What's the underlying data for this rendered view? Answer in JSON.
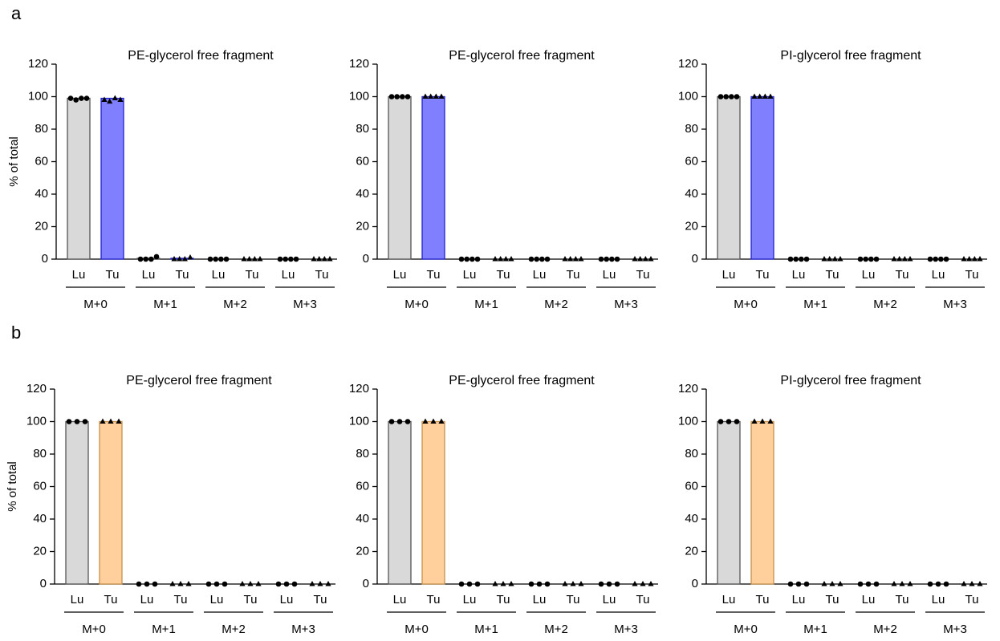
{
  "panel_labels": [
    "a",
    "b"
  ],
  "chart_data": [
    {
      "type": "bar",
      "title": "PE-glycerol free fragment",
      "ylabel": "% of total",
      "groups": [
        "M+0",
        "M+1",
        "M+2",
        "M+3"
      ],
      "ylim": [
        0,
        120
      ],
      "yticks": [
        0,
        20,
        40,
        60,
        80,
        100,
        120
      ],
      "series": [
        {
          "name": "Lu",
          "color": "#d9d9d9",
          "edge": "#555555",
          "marker": "circle",
          "values": [
            99,
            0.5,
            0,
            0
          ],
          "points": [
            [
              99,
              98,
              99,
              99
            ],
            [
              0,
              0,
              0,
              1.5
            ],
            [
              0,
              0,
              0,
              0
            ],
            [
              0,
              0,
              0,
              0
            ]
          ]
        },
        {
          "name": "Tu",
          "color": "#8080ff",
          "edge": "#2020d0",
          "marker": "triangle",
          "values": [
            99,
            0.5,
            0,
            0
          ],
          "points": [
            [
              98,
              97,
              99,
              98
            ],
            [
              0,
              0,
              0,
              1
            ],
            [
              0,
              0,
              0,
              0
            ],
            [
              0,
              0,
              0,
              0
            ]
          ]
        }
      ]
    },
    {
      "type": "bar",
      "title": "PE-glycerol free fragment",
      "groups": [
        "M+0",
        "M+1",
        "M+2",
        "M+3"
      ],
      "ylim": [
        0,
        120
      ],
      "yticks": [
        0,
        20,
        40,
        60,
        80,
        100,
        120
      ],
      "series": [
        {
          "name": "Lu",
          "color": "#d9d9d9",
          "edge": "#555555",
          "marker": "circle",
          "values": [
            100,
            0,
            0,
            0
          ],
          "points": [
            [
              100,
              100,
              100,
              100
            ],
            [
              0,
              0,
              0,
              0
            ],
            [
              0,
              0,
              0,
              0
            ],
            [
              0,
              0,
              0,
              0
            ]
          ]
        },
        {
          "name": "Tu",
          "color": "#8080ff",
          "edge": "#2020d0",
          "marker": "triangle",
          "values": [
            100,
            0,
            0,
            0
          ],
          "points": [
            [
              100,
              100,
              100,
              100
            ],
            [
              0,
              0,
              0,
              0
            ],
            [
              0,
              0,
              0,
              0
            ],
            [
              0,
              0,
              0,
              0
            ]
          ]
        }
      ]
    },
    {
      "type": "bar",
      "title": "PI-glycerol free fragment",
      "groups": [
        "M+0",
        "M+1",
        "M+2",
        "M+3"
      ],
      "ylim": [
        0,
        120
      ],
      "yticks": [
        0,
        20,
        40,
        60,
        80,
        100,
        120
      ],
      "series": [
        {
          "name": "Lu",
          "color": "#d9d9d9",
          "edge": "#555555",
          "marker": "circle",
          "values": [
            100,
            0,
            0,
            0
          ],
          "points": [
            [
              100,
              100,
              100,
              100
            ],
            [
              0,
              0,
              0,
              0
            ],
            [
              0,
              0,
              0,
              0
            ],
            [
              0,
              0,
              0,
              0
            ]
          ]
        },
        {
          "name": "Tu",
          "color": "#8080ff",
          "edge": "#2020d0",
          "marker": "triangle",
          "values": [
            100,
            0,
            0,
            0
          ],
          "points": [
            [
              100,
              100,
              100,
              100
            ],
            [
              0,
              0,
              0,
              0
            ],
            [
              0,
              0,
              0,
              0
            ],
            [
              0,
              0,
              0,
              0
            ]
          ]
        }
      ]
    },
    {
      "type": "bar",
      "title": "PE-glycerol free fragment",
      "ylabel": "% of total",
      "groups": [
        "M+0",
        "M+1",
        "M+2",
        "M+3"
      ],
      "ylim": [
        0,
        120
      ],
      "yticks": [
        0,
        20,
        40,
        60,
        80,
        100,
        120
      ],
      "series": [
        {
          "name": "Lu",
          "color": "#d9d9d9",
          "edge": "#555555",
          "marker": "circle",
          "values": [
            100,
            0,
            0,
            0
          ],
          "points": [
            [
              100,
              100,
              100
            ],
            [
              0,
              0,
              0
            ],
            [
              0,
              0,
              0
            ],
            [
              0,
              0,
              0
            ]
          ]
        },
        {
          "name": "Tu",
          "color": "#ffd09b",
          "edge": "#c8904a",
          "marker": "triangle",
          "values": [
            100,
            0,
            0,
            0
          ],
          "points": [
            [
              100,
              100,
              100
            ],
            [
              0,
              0,
              0
            ],
            [
              0,
              0,
              0
            ],
            [
              0,
              0,
              0
            ]
          ]
        }
      ]
    },
    {
      "type": "bar",
      "title": "PE-glycerol free fragment",
      "groups": [
        "M+0",
        "M+1",
        "M+2",
        "M+3"
      ],
      "ylim": [
        0,
        120
      ],
      "yticks": [
        0,
        20,
        40,
        60,
        80,
        100,
        120
      ],
      "series": [
        {
          "name": "Lu",
          "color": "#d9d9d9",
          "edge": "#555555",
          "marker": "circle",
          "values": [
            100,
            0,
            0,
            0
          ],
          "points": [
            [
              100,
              100,
              100
            ],
            [
              0,
              0,
              0
            ],
            [
              0,
              0,
              0
            ],
            [
              0,
              0,
              0
            ]
          ]
        },
        {
          "name": "Tu",
          "color": "#ffd09b",
          "edge": "#c8904a",
          "marker": "triangle",
          "values": [
            100,
            0,
            0,
            0
          ],
          "points": [
            [
              100,
              100,
              100
            ],
            [
              0,
              0,
              0
            ],
            [
              0,
              0,
              0
            ],
            [
              0,
              0,
              0
            ]
          ]
        }
      ]
    },
    {
      "type": "bar",
      "title": "PI-glycerol free fragment",
      "groups": [
        "M+0",
        "M+1",
        "M+2",
        "M+3"
      ],
      "ylim": [
        0,
        120
      ],
      "yticks": [
        0,
        20,
        40,
        60,
        80,
        100,
        120
      ],
      "series": [
        {
          "name": "Lu",
          "color": "#d9d9d9",
          "edge": "#555555",
          "marker": "circle",
          "values": [
            100,
            0,
            0,
            0
          ],
          "points": [
            [
              100,
              100,
              100
            ],
            [
              0,
              0,
              0
            ],
            [
              0,
              0,
              0
            ],
            [
              0,
              0,
              0
            ]
          ]
        },
        {
          "name": "Tu",
          "color": "#ffd09b",
          "edge": "#c8904a",
          "marker": "triangle",
          "values": [
            100,
            0,
            0,
            0
          ],
          "points": [
            [
              100,
              100,
              100
            ],
            [
              0,
              0,
              0
            ],
            [
              0,
              0,
              0
            ],
            [
              0,
              0,
              0
            ]
          ]
        }
      ]
    }
  ]
}
